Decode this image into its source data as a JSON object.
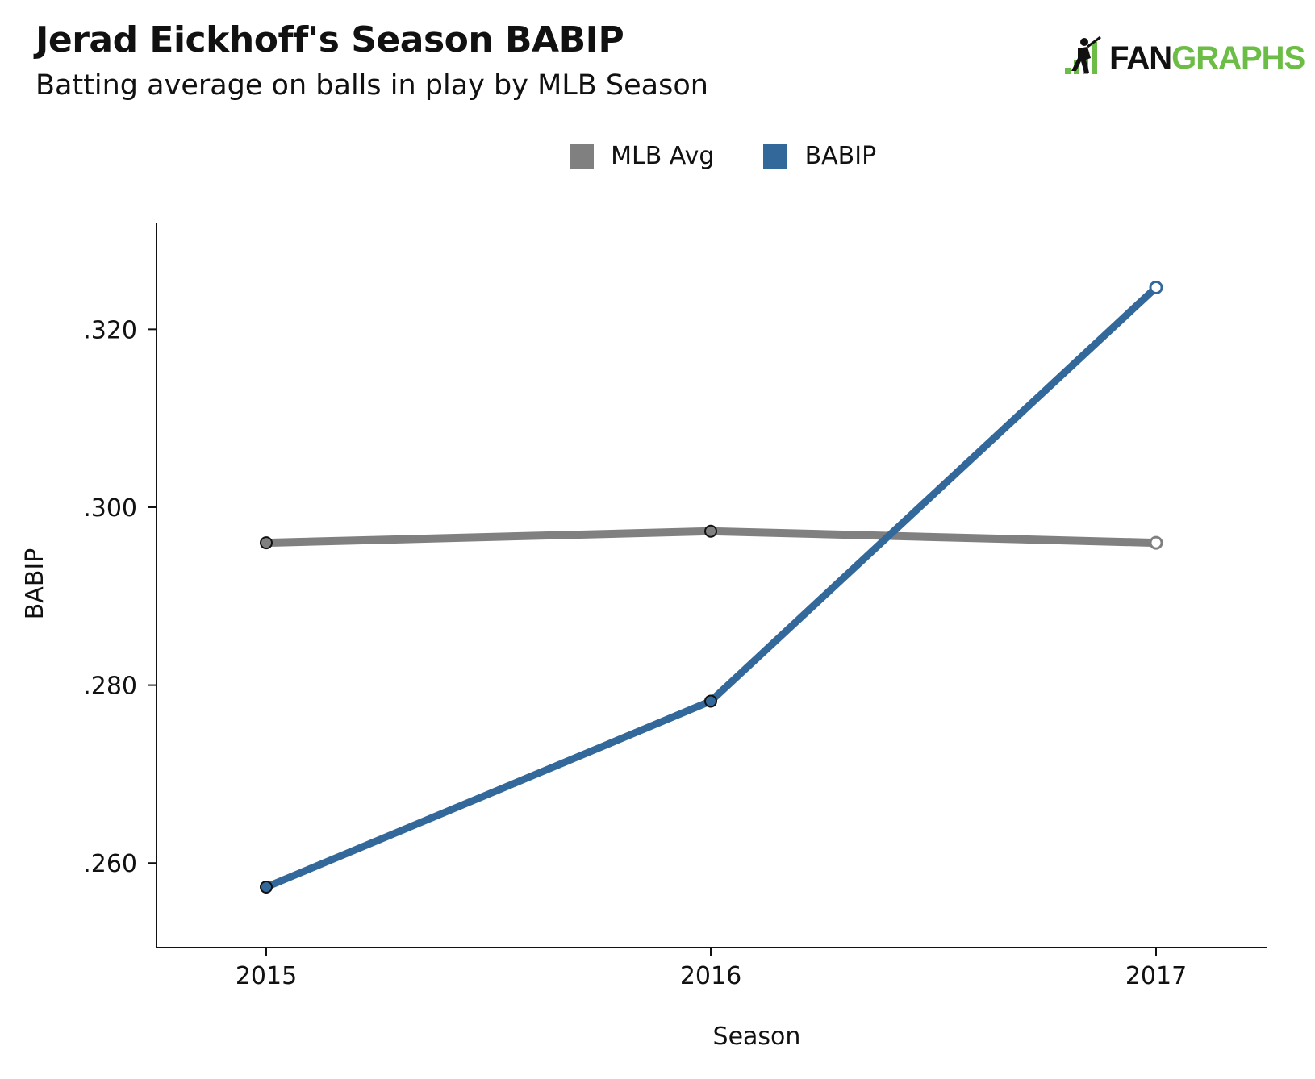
{
  "title": "Jerad Eickhoff's Season BABIP",
  "subtitle": "Batting average on balls in play by MLB Season",
  "logo": {
    "fan": "FAN",
    "graphs": "GRAPHS"
  },
  "colors": {
    "mlb_avg": "#808080",
    "babip": "#33689b",
    "axis": "#111111"
  },
  "chart_data": {
    "type": "line",
    "title": "Jerad Eickhoff's Season BABIP",
    "subtitle": "Batting average on balls in play by MLB Season",
    "xlabel": "Season",
    "ylabel": "BABIP",
    "categories": [
      "2015",
      "2016",
      "2017"
    ],
    "ylim": [
      0.2505,
      0.332
    ],
    "yticks": [
      0.26,
      0.28,
      0.3,
      0.32
    ],
    "ytick_labels": [
      ".260",
      ".280",
      ".300",
      ".320"
    ],
    "legend_position": "top-center",
    "series": [
      {
        "name": "MLB Avg",
        "color": "#808080",
        "values": [
          0.296,
          0.2973,
          0.296
        ],
        "last_point_hollow": true
      },
      {
        "name": "BABIP",
        "color": "#33689b",
        "values": [
          0.2573,
          0.2782,
          0.3247
        ],
        "last_point_hollow": true
      }
    ]
  }
}
